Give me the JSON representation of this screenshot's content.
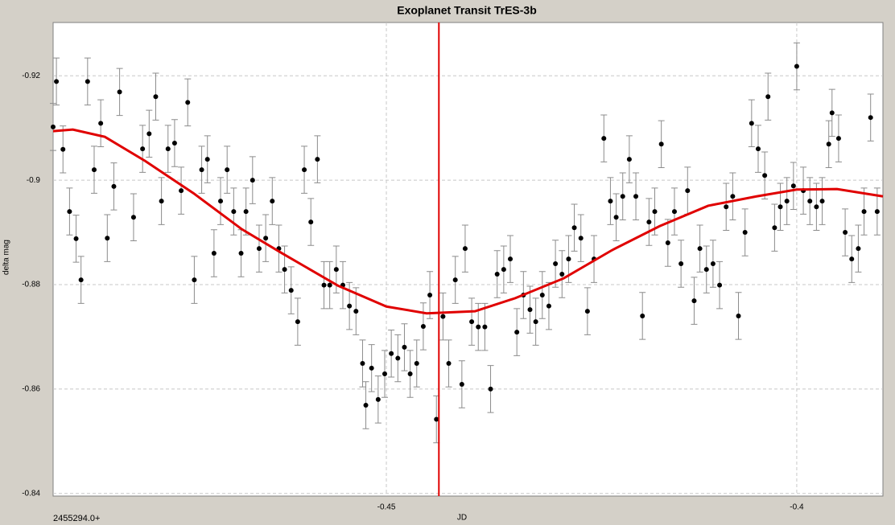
{
  "chart_data": {
    "type": "scatter",
    "title": "Exoplanet Transit TrES-3b",
    "x_label": "JD",
    "x_offset_label": "2455294.0+",
    "y_label": "delta mag",
    "xlim": [
      -0.4906,
      -0.3895
    ],
    "ylim": [
      -0.8395,
      -0.9302
    ],
    "xticks": [
      -0.45,
      -0.4
    ],
    "yticks": [
      -0.92,
      -0.9,
      -0.88,
      -0.86,
      -0.84
    ],
    "grid": true,
    "points": {
      "color": "#000000",
      "error_color": "#8c8c8c",
      "error": 0.0045,
      "x": [
        -0.4906,
        -0.4902,
        -0.4894,
        -0.4886,
        -0.4878,
        -0.4872,
        -0.4864,
        -0.4856,
        -0.4848,
        -0.484,
        -0.4832,
        -0.4825,
        -0.4808,
        -0.4797,
        -0.4789,
        -0.4781,
        -0.4774,
        -0.4766,
        -0.4758,
        -0.475,
        -0.4742,
        -0.4734,
        -0.4725,
        -0.4718,
        -0.471,
        -0.4702,
        -0.4694,
        -0.4686,
        -0.4677,
        -0.4671,
        -0.4663,
        -0.4655,
        -0.4647,
        -0.4639,
        -0.4631,
        -0.4624,
        -0.4616,
        -0.4608,
        -0.46,
        -0.4592,
        -0.4584,
        -0.4576,
        -0.4569,
        -0.4561,
        -0.4553,
        -0.4545,
        -0.4537,
        -0.4529,
        -0.4525,
        -0.4518,
        -0.451,
        -0.4502,
        -0.4494,
        -0.4486,
        -0.4478,
        -0.4471,
        -0.4463,
        -0.4455,
        -0.4447,
        -0.4439,
        -0.4431,
        -0.4424,
        -0.4416,
        -0.4408,
        -0.4404,
        -0.4396,
        -0.4388,
        -0.438,
        -0.4373,
        -0.4365,
        -0.4357,
        -0.4349,
        -0.4341,
        -0.4333,
        -0.4325,
        -0.4318,
        -0.431,
        -0.4302,
        -0.4294,
        -0.4286,
        -0.4278,
        -0.4271,
        -0.4263,
        -0.4255,
        -0.4247,
        -0.4235,
        -0.4227,
        -0.422,
        -0.4212,
        -0.4204,
        -0.4196,
        -0.4188,
        -0.418,
        -0.4173,
        -0.4165,
        -0.4157,
        -0.4149,
        -0.4141,
        -0.4133,
        -0.4125,
        -0.4118,
        -0.411,
        -0.4102,
        -0.4094,
        -0.4086,
        -0.4078,
        -0.4071,
        -0.4063,
        -0.4055,
        -0.4047,
        -0.4039,
        -0.4035,
        -0.4027,
        -0.402,
        -0.4012,
        -0.4004,
        -0.4,
        -0.3992,
        -0.3984,
        -0.3976,
        -0.3969,
        -0.3961,
        -0.3957,
        -0.3949,
        -0.3941,
        -0.3933,
        -0.3925,
        -0.3918,
        -0.391,
        -0.3902
      ],
      "values": [
        -0.9102,
        -0.9189,
        -0.9059,
        -0.894,
        -0.8888,
        -0.8809,
        -0.9189,
        -0.902,
        -0.9109,
        -0.8889,
        -0.8988,
        -0.9169,
        -0.8929,
        -0.906,
        -0.9089,
        -0.916,
        -0.896,
        -0.906,
        -0.9071,
        -0.898,
        -0.9149,
        -0.8809,
        -0.902,
        -0.904,
        -0.886,
        -0.896,
        -0.902,
        -0.894,
        -0.886,
        -0.894,
        -0.9,
        -0.8869,
        -0.8889,
        -0.896,
        -0.8869,
        -0.8829,
        -0.8789,
        -0.8729,
        -0.902,
        -0.892,
        -0.904,
        -0.8799,
        -0.8799,
        -0.8829,
        -0.8799,
        -0.8759,
        -0.8749,
        -0.8649,
        -0.8569,
        -0.864,
        -0.858,
        -0.8629,
        -0.8668,
        -0.8659,
        -0.868,
        -0.8629,
        -0.8649,
        -0.872,
        -0.878,
        -0.8542,
        -0.8739,
        -0.8649,
        -0.8809,
        -0.8609,
        -0.8869,
        -0.8729,
        -0.8719,
        -0.8719,
        -0.86,
        -0.882,
        -0.8829,
        -0.8849,
        -0.8709,
        -0.878,
        -0.8752,
        -0.8729,
        -0.878,
        -0.8759,
        -0.884,
        -0.882,
        -0.8849,
        -0.8909,
        -0.8889,
        -0.8749,
        -0.8849,
        -0.908,
        -0.896,
        -0.8929,
        -0.8969,
        -0.904,
        -0.8969,
        -0.874,
        -0.892,
        -0.894,
        -0.9069,
        -0.888,
        -0.894,
        -0.884,
        -0.898,
        -0.8769,
        -0.8869,
        -0.8829,
        -0.884,
        -0.8799,
        -0.8949,
        -0.8969,
        -0.874,
        -0.89,
        -0.9109,
        -0.906,
        -0.9009,
        -0.916,
        -0.8909,
        -0.8949,
        -0.896,
        -0.8989,
        -0.9218,
        -0.898,
        -0.896,
        -0.8949,
        -0.896,
        -0.9069,
        -0.9129,
        -0.908,
        -0.89,
        -0.8849,
        -0.8869,
        -0.894,
        -0.912,
        -0.894
      ]
    },
    "fit": {
      "color": "#e00000",
      "x": [
        -0.4906,
        -0.4882,
        -0.4843,
        -0.4794,
        -0.4735,
        -0.4676,
        -0.4627,
        -0.4559,
        -0.45,
        -0.4451,
        -0.4392,
        -0.4343,
        -0.4284,
        -0.4225,
        -0.4167,
        -0.4108,
        -0.4049,
        -0.4,
        -0.3951,
        -0.3895
      ],
      "values": [
        -0.9094,
        -0.9097,
        -0.9083,
        -0.9037,
        -0.8975,
        -0.8906,
        -0.886,
        -0.8798,
        -0.8758,
        -0.8745,
        -0.8749,
        -0.8774,
        -0.8812,
        -0.8866,
        -0.8912,
        -0.8951,
        -0.8969,
        -0.8982,
        -0.8983,
        -0.8969
      ]
    },
    "vline": {
      "x": -0.4436,
      "color": "#e00000"
    }
  }
}
